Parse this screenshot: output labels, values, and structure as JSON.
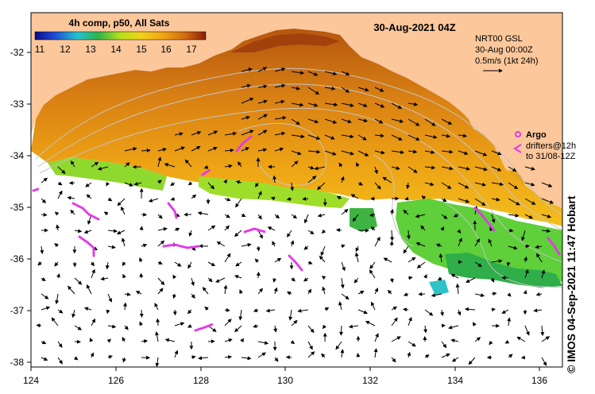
{
  "title": "30-Aug-2021 04Z",
  "colorbar": {
    "label": "4h comp, p50, All Sats",
    "ticks": [
      "11",
      "12",
      "13",
      "14",
      "15",
      "16",
      "17"
    ],
    "colors": [
      "#0a0a8c",
      "#1f4fd6",
      "#27c3cf",
      "#2fb34a",
      "#b6e11c",
      "#f0d21a",
      "#f2a414",
      "#d26a10",
      "#8a1d0a"
    ]
  },
  "current_legend": {
    "source": "NRT00 GSL",
    "time": "30-Aug 00:00Z",
    "scale": "0.5m/s (1kt 24h)"
  },
  "drifter_legend": {
    "argo": "Argo",
    "drifters_line1": "drifters@12h",
    "drifters_line2": "to 31/08-12Z",
    "color": "#e23be6"
  },
  "credit": "©  IMOS 04-Sep-2021 11:47 Hobart",
  "axes": {
    "x_ticks": [
      "124",
      "126",
      "128",
      "130",
      "132",
      "134",
      "136"
    ],
    "y_ticks": [
      "-32",
      "-33",
      "-34",
      "-35",
      "-36",
      "-37",
      "-38"
    ]
  },
  "colors": {
    "land": "#fbc79b",
    "ocean_nodata": "#ffffff",
    "contour": "#bdbdbd"
  }
}
